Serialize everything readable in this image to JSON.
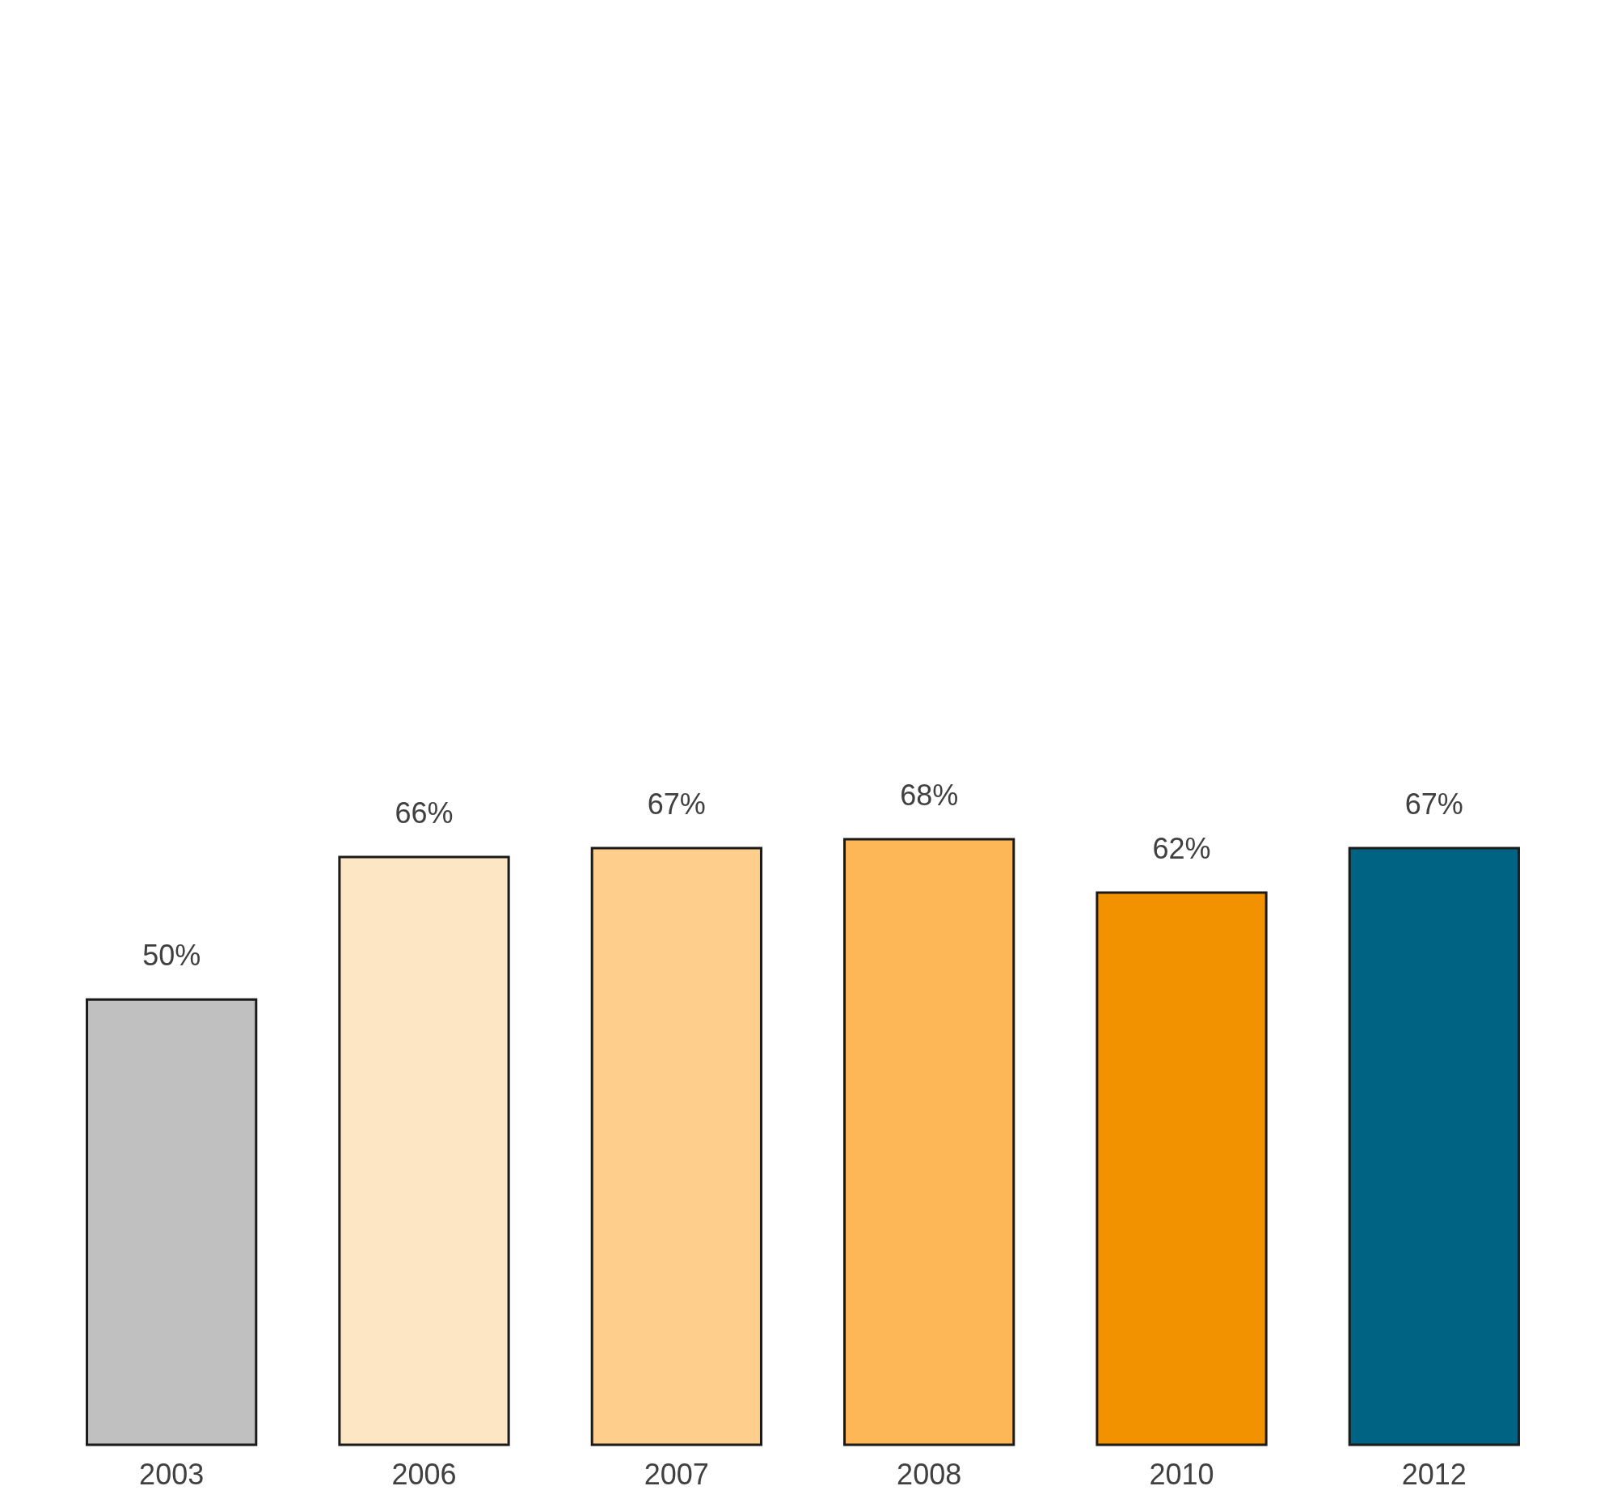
{
  "chart_data": {
    "type": "bar",
    "categories": [
      "2003",
      "2006",
      "2007",
      "2008",
      "2010",
      "2012"
    ],
    "values": [
      50,
      66,
      67,
      68,
      62,
      67
    ],
    "value_labels": [
      "50%",
      "66%",
      "67%",
      "68%",
      "62%",
      "67%"
    ],
    "colors": [
      "#c0c0c0",
      "#fde6c4",
      "#fdce8c",
      "#fdb756",
      "#f29200",
      "#006384"
    ]
  }
}
